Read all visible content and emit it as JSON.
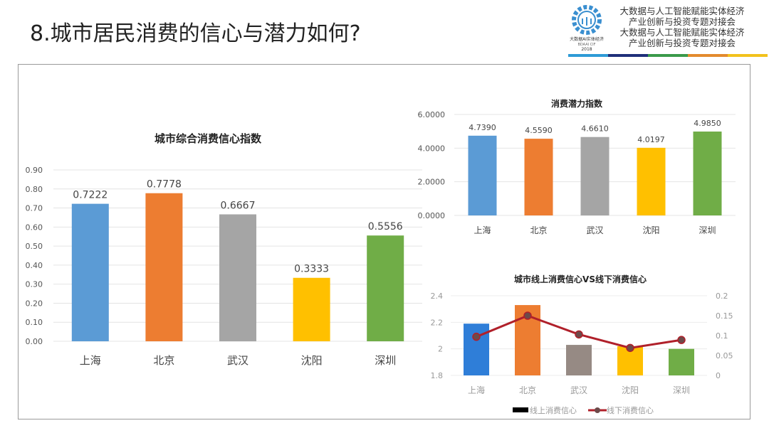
{
  "slide": {
    "title": "8.城市居民消费的信心与潜力如何?",
    "header_lines": [
      "大数据与人工智能赋能实体经济",
      "产业创新与投资专题对接会",
      "大数据与人工智能赋能实体经济",
      "产业创新与投资专题对接会"
    ],
    "logo_text": [
      "大数据AI实体经济",
      "BDAAI CIF",
      "2018"
    ],
    "stripe_colors": [
      "#2e9bd6",
      "#1f2f7a",
      "#3a9a4a",
      "#e38a2e",
      "#f2c21c"
    ]
  },
  "chart_data": [
    {
      "type": "bar",
      "title": "城市综合消费信心指数",
      "categories": [
        "上海",
        "北京",
        "武汉",
        "沈阳",
        "深圳"
      ],
      "values": [
        0.7222,
        0.7778,
        0.6667,
        0.3333,
        0.5556
      ],
      "data_labels": [
        "0.7222",
        "0.7778",
        "0.6667",
        "0.3333",
        "0.5556"
      ],
      "colors": [
        "#5b9bd5",
        "#ed7d31",
        "#a5a5a5",
        "#ffc000",
        "#70ad47"
      ],
      "ylim": [
        0,
        0.9
      ],
      "yticks": [
        "0.00",
        "0.10",
        "0.20",
        "0.30",
        "0.40",
        "0.50",
        "0.60",
        "0.70",
        "0.80",
        "0.90"
      ],
      "grid": true
    },
    {
      "type": "bar",
      "title": "消费潜力指数",
      "categories": [
        "上海",
        "北京",
        "武汉",
        "沈阳",
        "深圳"
      ],
      "values": [
        4.739,
        4.559,
        4.661,
        4.0197,
        4.985
      ],
      "data_labels": [
        "4.7390",
        "4.5590",
        "4.6610",
        "4.0197",
        "4.9850"
      ],
      "colors": [
        "#5b9bd5",
        "#ed7d31",
        "#a5a5a5",
        "#ffc000",
        "#70ad47"
      ],
      "ylim": [
        0,
        6
      ],
      "yticks": [
        "0.0000",
        "2.0000",
        "4.0000",
        "6.0000"
      ],
      "grid": true
    },
    {
      "type": "bar+line",
      "title": "城市线上消费信心VS线下消费信心",
      "categories": [
        "上海",
        "北京",
        "武汉",
        "沈阳",
        "深圳"
      ],
      "series": [
        {
          "name": "线上消费信心",
          "type": "bar",
          "axis": "left",
          "values": [
            2.19,
            2.33,
            2.03,
            2.02,
            2.0
          ],
          "colors": [
            "#2f7ed8",
            "#ed7d31",
            "#968a84",
            "#ffc000",
            "#70ad47"
          ]
        },
        {
          "name": "线下消费信心",
          "type": "line",
          "axis": "right",
          "values": [
            0.097,
            0.15,
            0.103,
            0.069,
            0.089
          ],
          "color": "#b0202a"
        }
      ],
      "ylim": [
        1.8,
        2.4
      ],
      "yticks": [
        "1.8",
        "2",
        "2.2",
        "2.4"
      ],
      "y2lim": [
        0,
        0.2
      ],
      "y2ticks": [
        "0",
        "0.05",
        "0.1",
        "0.15",
        "0.2"
      ],
      "legend": "bottom",
      "grid": true
    }
  ]
}
